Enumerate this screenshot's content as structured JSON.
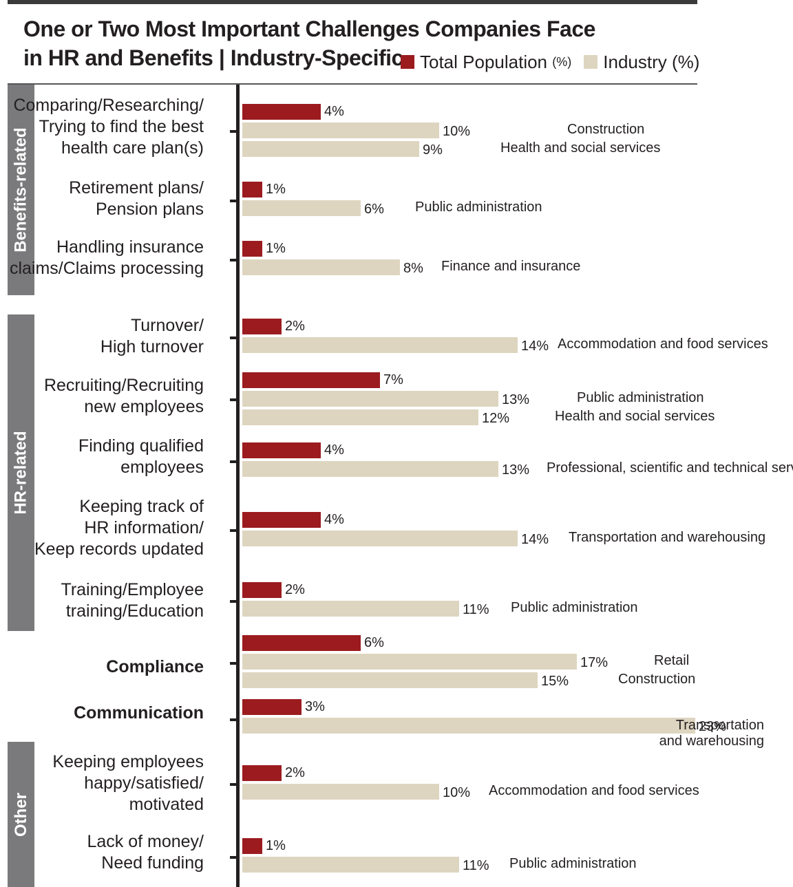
{
  "title_line1": "One or Two Most Important Challenges Companies Face",
  "title_line2": "in HR and Benefits | Industry-Specific",
  "legend": {
    "total": "Total Population",
    "total_unit": "(%)",
    "industry": "Industry (%)"
  },
  "colors": {
    "total": "#9b1b1f",
    "industry": "#ded5c0",
    "group": "#7a7a7c"
  },
  "groups": [
    {
      "label": "Benefits-related"
    },
    {
      "label": "HR-related"
    },
    {
      "label": "Other"
    }
  ],
  "chart_data": {
    "type": "bar",
    "orientation": "horizontal",
    "series": [
      {
        "name": "Total Population (%)",
        "key": "total"
      },
      {
        "name": "Industry (%)",
        "key": "industry"
      }
    ],
    "categories": [
      {
        "label": "Comparing/Researching/\nTrying to find the best\nhealth care plan(s)",
        "bold": false,
        "total": 4,
        "industries": [
          {
            "value": 10,
            "name": "Construction"
          },
          {
            "value": 9,
            "name": "Health and social services"
          }
        ]
      },
      {
        "label": "Retirement plans/\nPension plans",
        "bold": false,
        "total": 1,
        "industries": [
          {
            "value": 6,
            "name": "Public administration"
          }
        ]
      },
      {
        "label": "Handling insurance\nclaims/Claims processing",
        "bold": false,
        "total": 1,
        "industries": [
          {
            "value": 8,
            "name": "Finance and insurance"
          }
        ]
      },
      {
        "label": "Turnover/\nHigh turnover",
        "bold": false,
        "total": 2,
        "industries": [
          {
            "value": 14,
            "name": "Accommodation and food services"
          }
        ]
      },
      {
        "label": "Recruiting/Recruiting\nnew employees",
        "bold": false,
        "total": 7,
        "industries": [
          {
            "value": 13,
            "name": "Public administration"
          },
          {
            "value": 12,
            "name": "Health and social services"
          }
        ]
      },
      {
        "label": "Finding qualified\nemployees",
        "bold": false,
        "total": 4,
        "industries": [
          {
            "value": 13,
            "name": "Professional, scientific and technical services"
          }
        ]
      },
      {
        "label": "Keeping track of\nHR information/\nKeep records updated",
        "bold": false,
        "total": 4,
        "industries": [
          {
            "value": 14,
            "name": "Transportation and warehousing"
          }
        ]
      },
      {
        "label": "Training/Employee\ntraining/Education",
        "bold": false,
        "total": 2,
        "industries": [
          {
            "value": 11,
            "name": "Public administration"
          }
        ]
      },
      {
        "label": "Compliance",
        "bold": true,
        "total": 6,
        "industries": [
          {
            "value": 17,
            "name": "Retail"
          },
          {
            "value": 15,
            "name": "Construction"
          }
        ]
      },
      {
        "label": "Communication",
        "bold": true,
        "total": 3,
        "industries": [
          {
            "value": 23,
            "name": "Transportation\nand warehousing"
          }
        ]
      },
      {
        "label": "Keeping employees\nhappy/satisfied/\nmotivated",
        "bold": false,
        "total": 2,
        "industries": [
          {
            "value": 10,
            "name": "Accommodation and food services"
          }
        ]
      },
      {
        "label": "Lack of money/\nNeed funding",
        "bold": false,
        "total": 1,
        "industries": [
          {
            "value": 11,
            "name": "Public administration"
          }
        ]
      }
    ]
  }
}
